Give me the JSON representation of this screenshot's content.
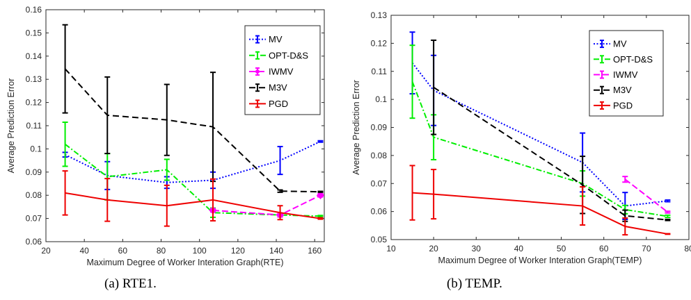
{
  "chart_data": [
    {
      "type": "line",
      "caption": "(a) RTE1.",
      "xlabel": "Maximum Degree of Worker Interation Graph(RTE)",
      "ylabel": "Average Prediction Error",
      "xlim": [
        20,
        165
      ],
      "ylim": [
        0.06,
        0.16
      ],
      "xticks": [
        20,
        40,
        60,
        80,
        100,
        120,
        140,
        160
      ],
      "yticks": [
        0.06,
        0.07,
        0.08,
        0.09,
        0.1,
        0.11,
        0.12,
        0.13,
        0.14,
        0.15,
        0.16
      ],
      "ytick_labels": [
        "0.06",
        "0.07",
        "0.08",
        "0.09",
        "0.1",
        "0.11",
        "0.12",
        "0.13",
        "0.14",
        "0.15",
        "0.16"
      ],
      "legend_position": "top-right",
      "series": [
        {
          "name": "MV",
          "color": "#0000ff",
          "dash": "2,2.5",
          "marker": "none",
          "x": [
            30,
            52,
            83,
            107,
            142,
            163
          ],
          "y": [
            0.0975,
            0.0885,
            0.0855,
            0.0865,
            0.095,
            0.1032
          ],
          "err": [
            0.001,
            0.006,
            0.0025,
            0.0035,
            0.006,
            0.0003
          ]
        },
        {
          "name": "OPT-D&S",
          "color": "#00ee00",
          "dash": "8,3,2,3",
          "marker": "none",
          "x": [
            30,
            52,
            83,
            107,
            142,
            163
          ],
          "y": [
            0.102,
            0.088,
            0.091,
            0.0725,
            0.0715,
            0.071
          ],
          "err": [
            0.0095,
            0.01,
            0.0045,
            0.002,
            0.0008,
            0.0003
          ]
        },
        {
          "name": "IWMV",
          "color": "#ff00ff",
          "dash": "9,4",
          "marker": "diamond",
          "x": [
            107,
            142,
            163
          ],
          "y": [
            0.0735,
            0.0715,
            0.08
          ],
          "err": [
            0.0007,
            0.0008,
            0.0007
          ]
        },
        {
          "name": "M3V",
          "color": "#000000",
          "dash": "9,5",
          "marker": "none",
          "x": [
            30,
            52,
            83,
            107,
            142,
            163
          ],
          "y": [
            0.1345,
            0.1145,
            0.1125,
            0.1095,
            0.0818,
            0.0815
          ],
          "err": [
            0.019,
            0.0165,
            0.0153,
            0.0235,
            0.0005,
            0.0002
          ]
        },
        {
          "name": "PGD",
          "color": "#ee0000",
          "dash": "",
          "marker": "none",
          "x": [
            30,
            52,
            83,
            107,
            142,
            163
          ],
          "y": [
            0.081,
            0.078,
            0.0755,
            0.078,
            0.0725,
            0.07
          ],
          "err": [
            0.0095,
            0.0092,
            0.0088,
            0.009,
            0.003,
            0.0003
          ]
        }
      ]
    },
    {
      "type": "line",
      "caption": "(b) TEMP.",
      "xlabel": "Maximum Degree of Worker Interation Graph(TEMP)",
      "ylabel": "Average Prediction Error",
      "xlim": [
        10,
        80
      ],
      "ylim": [
        0.05,
        0.13
      ],
      "xticks": [
        10,
        20,
        30,
        40,
        50,
        60,
        70,
        80
      ],
      "yticks": [
        0.05,
        0.06,
        0.07,
        0.08,
        0.09,
        0.1,
        0.11,
        0.12,
        0.13
      ],
      "ytick_labels": [
        "0.05",
        "0.06",
        "0.07",
        "0.08",
        "0.09",
        "0.1",
        "0.11",
        "0.12",
        "0.13"
      ],
      "legend_position": "top-right",
      "series": [
        {
          "name": "MV",
          "color": "#0000ff",
          "dash": "2,2.5",
          "marker": "none",
          "x": [
            15,
            20,
            55,
            65,
            75
          ],
          "y": [
            0.113,
            0.1032,
            0.0775,
            0.062,
            0.0638
          ],
          "err": [
            0.011,
            0.0125,
            0.0105,
            0.0048,
            0.0003
          ]
        },
        {
          "name": "OPT-D&S",
          "color": "#00ee00",
          "dash": "8,3,2,3",
          "marker": "none",
          "x": [
            15,
            20,
            55,
            65,
            75
          ],
          "y": [
            0.1063,
            0.0865,
            0.07,
            0.0607,
            0.0583
          ],
          "err": [
            0.013,
            0.008,
            0.0045,
            0.0015,
            0.0004
          ]
        },
        {
          "name": "IWMV",
          "color": "#ff00ff",
          "dash": "9,4",
          "marker": "none",
          "x": [
            65,
            75
          ],
          "y": [
            0.0715,
            0.0598
          ],
          "err": [
            0.001,
            0.0003
          ]
        },
        {
          "name": "M3V",
          "color": "#000000",
          "dash": "9,5",
          "marker": "none",
          "x": [
            20,
            55,
            65,
            75
          ],
          "y": [
            0.1043,
            0.0695,
            0.0585,
            0.057
          ],
          "err": [
            0.0168,
            0.0102,
            0.002,
            0.0002
          ]
        },
        {
          "name": "PGD",
          "color": "#ee0000",
          "dash": "",
          "marker": "none",
          "x": [
            15,
            20,
            55,
            65,
            75
          ],
          "y": [
            0.0667,
            0.0662,
            0.062,
            0.0547,
            0.052
          ],
          "err": [
            0.0097,
            0.0088,
            0.0068,
            0.003,
            0.0001
          ]
        }
      ]
    }
  ]
}
